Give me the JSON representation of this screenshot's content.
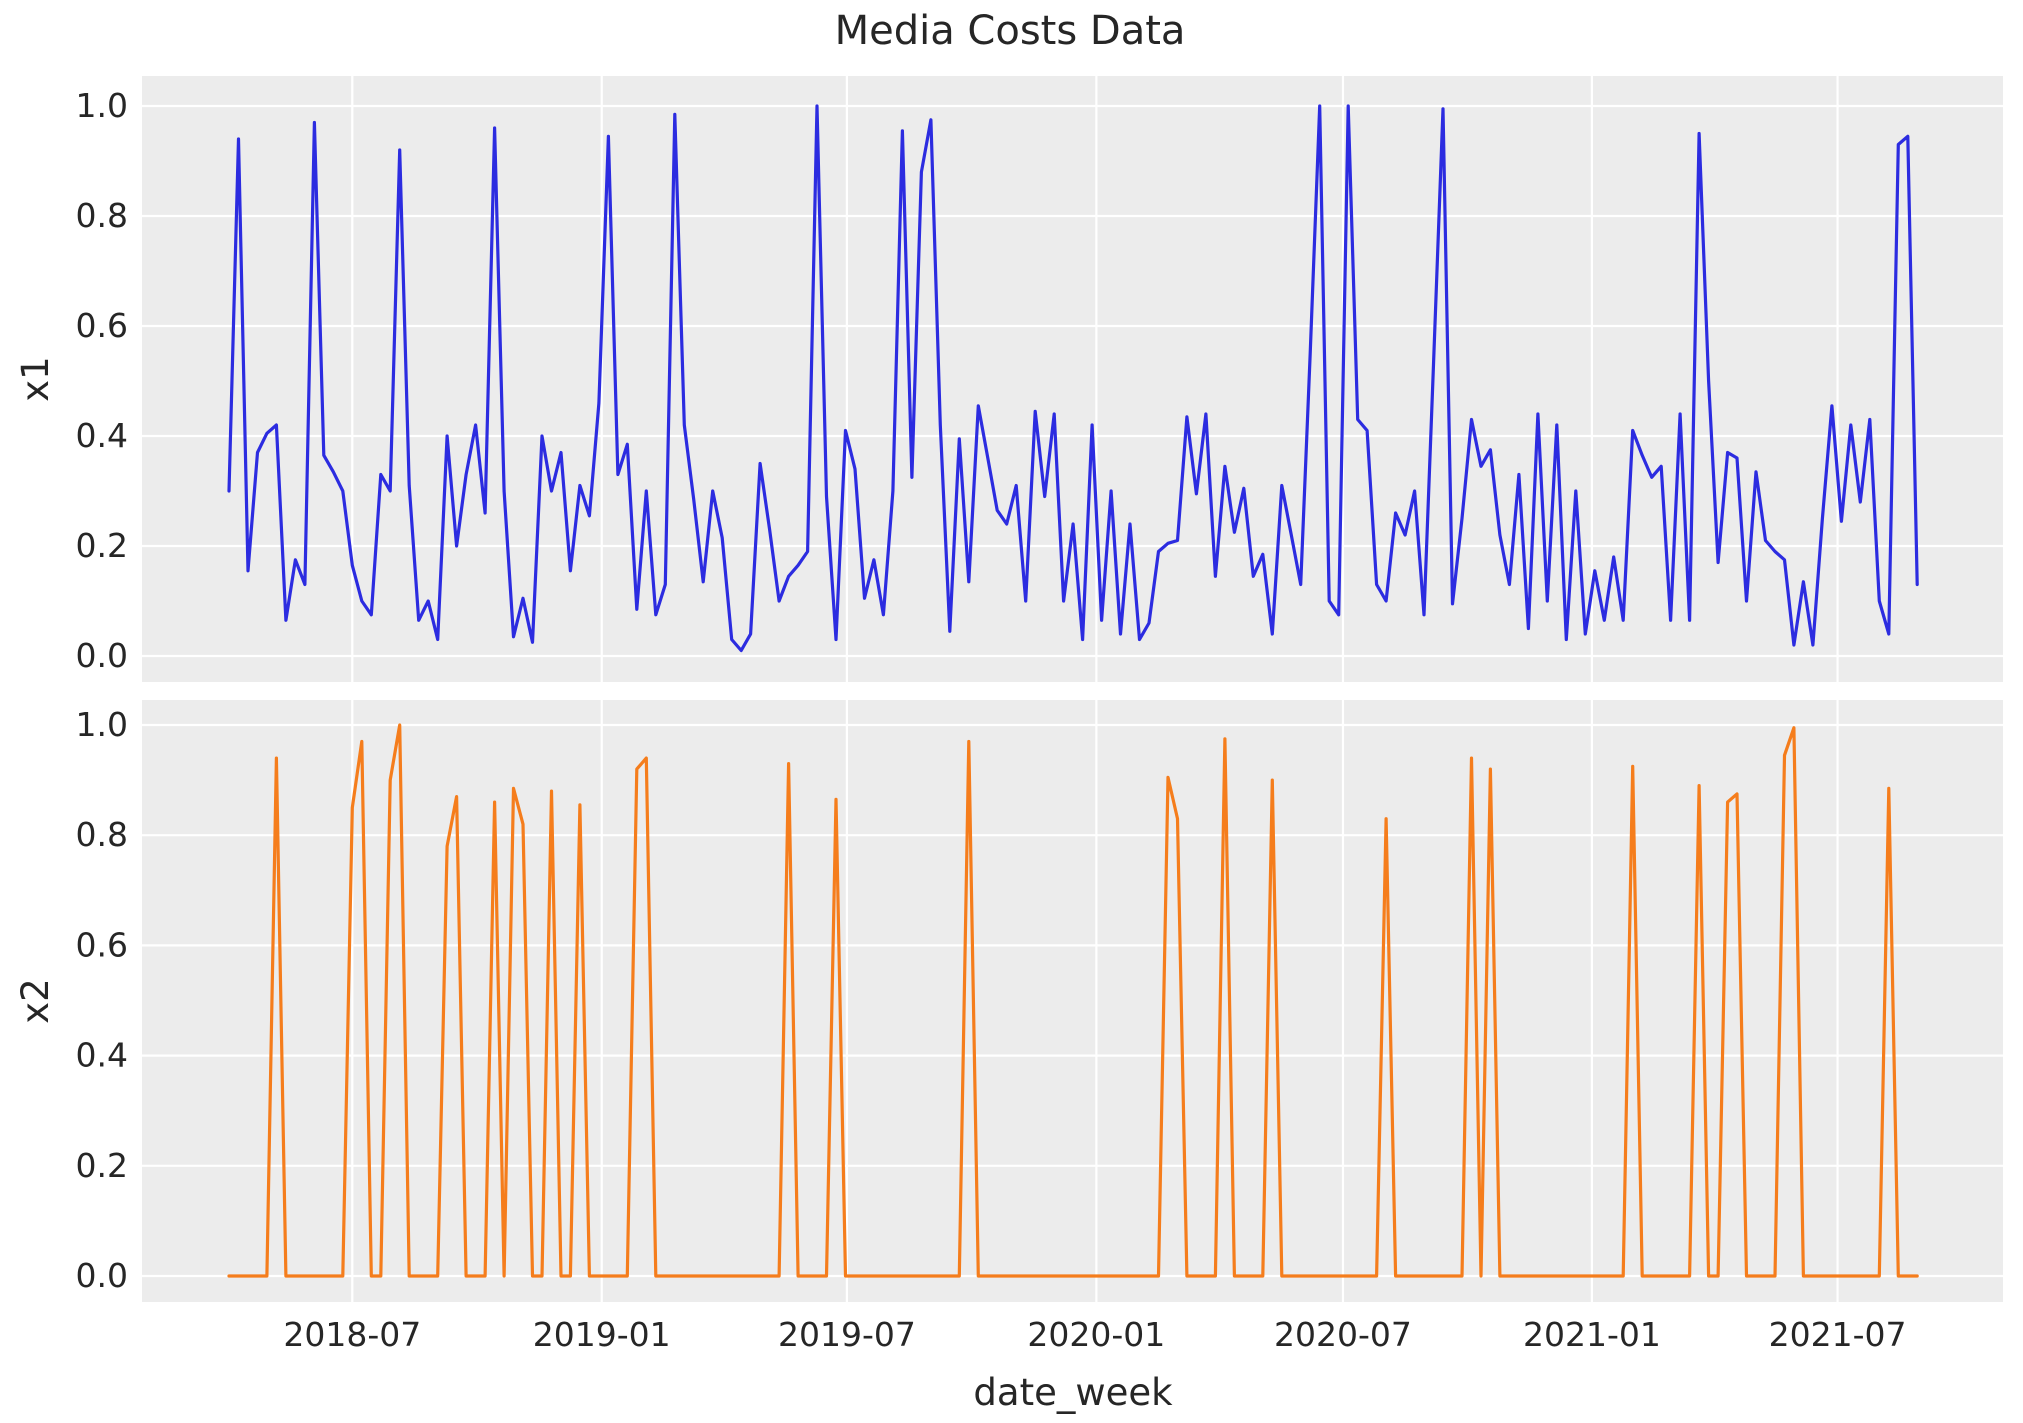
{
  "title": "Media Costs Data",
  "xlabel": "date_week",
  "panels": [
    {
      "ylabel": "x1",
      "color": "#2c2ce0"
    },
    {
      "ylabel": "x2",
      "color": "#f57d1c"
    }
  ],
  "yticks": [
    "0.0",
    "0.2",
    "0.4",
    "0.6",
    "0.8",
    "1.0"
  ],
  "ytick_values": [
    0.0,
    0.2,
    0.4,
    0.6,
    0.8,
    1.0
  ],
  "xticks": [
    {
      "label": "2018-07",
      "week": 13.0
    },
    {
      "label": "2019-01",
      "week": 39.3
    },
    {
      "label": "2019-07",
      "week": 65.15
    },
    {
      "label": "2020-01",
      "week": 91.45
    },
    {
      "label": "2020-07",
      "week": 117.45
    },
    {
      "label": "2021-01",
      "week": 143.7
    },
    {
      "label": "2021-07",
      "week": 169.6
    }
  ],
  "chart_data": [
    {
      "type": "line",
      "name": "x1",
      "title": "Media Costs Data",
      "xlabel": "date_week",
      "ylabel": "x1",
      "ylim": [
        -0.05,
        1.05
      ],
      "grid": true,
      "legend": "none",
      "x_unit": "week_index (weekly samples, ~2018-04 to ~2021-08)",
      "values": [
        0.3,
        0.94,
        0.155,
        0.37,
        0.405,
        0.42,
        0.065,
        0.175,
        0.13,
        0.97,
        0.365,
        0.335,
        0.3,
        0.165,
        0.1,
        0.075,
        0.33,
        0.3,
        0.92,
        0.31,
        0.065,
        0.1,
        0.03,
        0.4,
        0.2,
        0.33,
        0.42,
        0.26,
        0.96,
        0.3,
        0.035,
        0.105,
        0.025,
        0.4,
        0.3,
        0.37,
        0.155,
        0.31,
        0.255,
        0.46,
        0.945,
        0.33,
        0.385,
        0.085,
        0.3,
        0.075,
        0.13,
        0.985,
        0.42,
        0.285,
        0.135,
        0.3,
        0.215,
        0.03,
        0.01,
        0.04,
        0.35,
        0.23,
        0.1,
        0.145,
        0.165,
        0.19,
        1.0,
        0.29,
        0.03,
        0.41,
        0.34,
        0.105,
        0.175,
        0.075,
        0.3,
        0.955,
        0.325,
        0.88,
        0.975,
        0.42,
        0.045,
        0.395,
        0.135,
        0.455,
        0.36,
        0.265,
        0.24,
        0.31,
        0.1,
        0.445,
        0.29,
        0.44,
        0.1,
        0.24,
        0.03,
        0.42,
        0.065,
        0.3,
        0.04,
        0.24,
        0.03,
        0.06,
        0.19,
        0.205,
        0.21,
        0.435,
        0.295,
        0.44,
        0.145,
        0.345,
        0.225,
        0.305,
        0.145,
        0.185,
        0.04,
        0.31,
        0.22,
        0.13,
        0.55,
        1.0,
        0.1,
        0.075,
        1.0,
        0.43,
        0.41,
        0.13,
        0.1,
        0.26,
        0.22,
        0.3,
        0.075,
        0.53,
        0.995,
        0.095,
        0.25,
        0.43,
        0.345,
        0.375,
        0.22,
        0.13,
        0.33,
        0.05,
        0.44,
        0.1,
        0.42,
        0.03,
        0.3,
        0.04,
        0.155,
        0.065,
        0.18,
        0.065,
        0.41,
        0.365,
        0.325,
        0.345,
        0.065,
        0.44,
        0.065,
        0.95,
        0.5,
        0.17,
        0.37,
        0.36,
        0.1,
        0.335,
        0.21,
        0.19,
        0.175,
        0.02,
        0.135,
        0.02,
        0.25,
        0.455,
        0.245,
        0.42,
        0.28,
        0.43,
        0.1,
        0.04,
        0.93,
        0.945,
        0.13
      ]
    },
    {
      "type": "line",
      "name": "x2",
      "xlabel": "date_week",
      "ylabel": "x2",
      "ylim": [
        -0.05,
        1.05
      ],
      "grid": true,
      "legend": "none",
      "x_unit": "week_index (weekly samples, ~2018-04 to ~2021-08)",
      "values": [
        0,
        0,
        0,
        0,
        0,
        0.94,
        0,
        0,
        0,
        0,
        0,
        0,
        0,
        0.85,
        0.97,
        0,
        0,
        0.9,
        1.0,
        0,
        0,
        0,
        0,
        0.78,
        0.87,
        0,
        0,
        0,
        0.86,
        0,
        0.885,
        0.82,
        0,
        0,
        0.88,
        0,
        0,
        0.855,
        0,
        0,
        0,
        0,
        0,
        0.92,
        0.94,
        0,
        0,
        0,
        0,
        0,
        0,
        0,
        0,
        0,
        0,
        0,
        0,
        0,
        0,
        0.93,
        0,
        0,
        0,
        0,
        0.865,
        0,
        0,
        0,
        0,
        0,
        0,
        0,
        0,
        0,
        0,
        0,
        0,
        0,
        0.97,
        0,
        0,
        0,
        0,
        0,
        0,
        0,
        0,
        0,
        0,
        0,
        0,
        0,
        0,
        0,
        0,
        0,
        0,
        0,
        0,
        0.905,
        0.83,
        0,
        0,
        0,
        0,
        0.975,
        0,
        0,
        0,
        0,
        0.9,
        0,
        0,
        0,
        0,
        0,
        0,
        0,
        0,
        0,
        0,
        0,
        0.83,
        0,
        0,
        0,
        0,
        0,
        0,
        0,
        0,
        0.94,
        0,
        0.92,
        0,
        0,
        0,
        0,
        0,
        0,
        0,
        0,
        0,
        0,
        0,
        0,
        0,
        0,
        0.925,
        0,
        0,
        0,
        0,
        0,
        0,
        0.89,
        0,
        0,
        0.86,
        0.875,
        0,
        0,
        0,
        0,
        0.945,
        0.995,
        0,
        0,
        0,
        0,
        0,
        0,
        0,
        0,
        0,
        0.885,
        0,
        0,
        0
      ]
    }
  ]
}
